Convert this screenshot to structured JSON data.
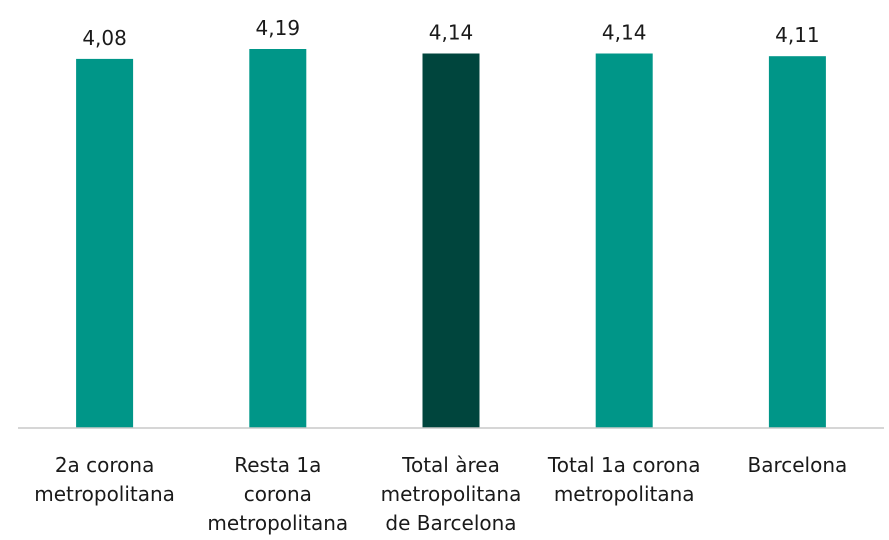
{
  "chart_data": {
    "type": "bar",
    "categories": [
      [
        "2a corona",
        "metropolitana"
      ],
      [
        "Resta 1a",
        "corona",
        "metropolitana"
      ],
      [
        "Total àrea",
        "metropolitana",
        "de Barcelona"
      ],
      [
        "Total 1a corona",
        "metropolitana"
      ],
      [
        "Barcelona"
      ]
    ],
    "values": [
      4.08,
      4.19,
      4.14,
      4.14,
      4.11
    ],
    "value_labels": [
      "4,08",
      "4,19",
      "4,14",
      "4,14",
      "4,11"
    ],
    "highlight_index": 2,
    "colors": {
      "bar": "#009688",
      "highlight": "#00453d",
      "axis": "#c8c8c8"
    },
    "grid": false,
    "legend": "none"
  }
}
